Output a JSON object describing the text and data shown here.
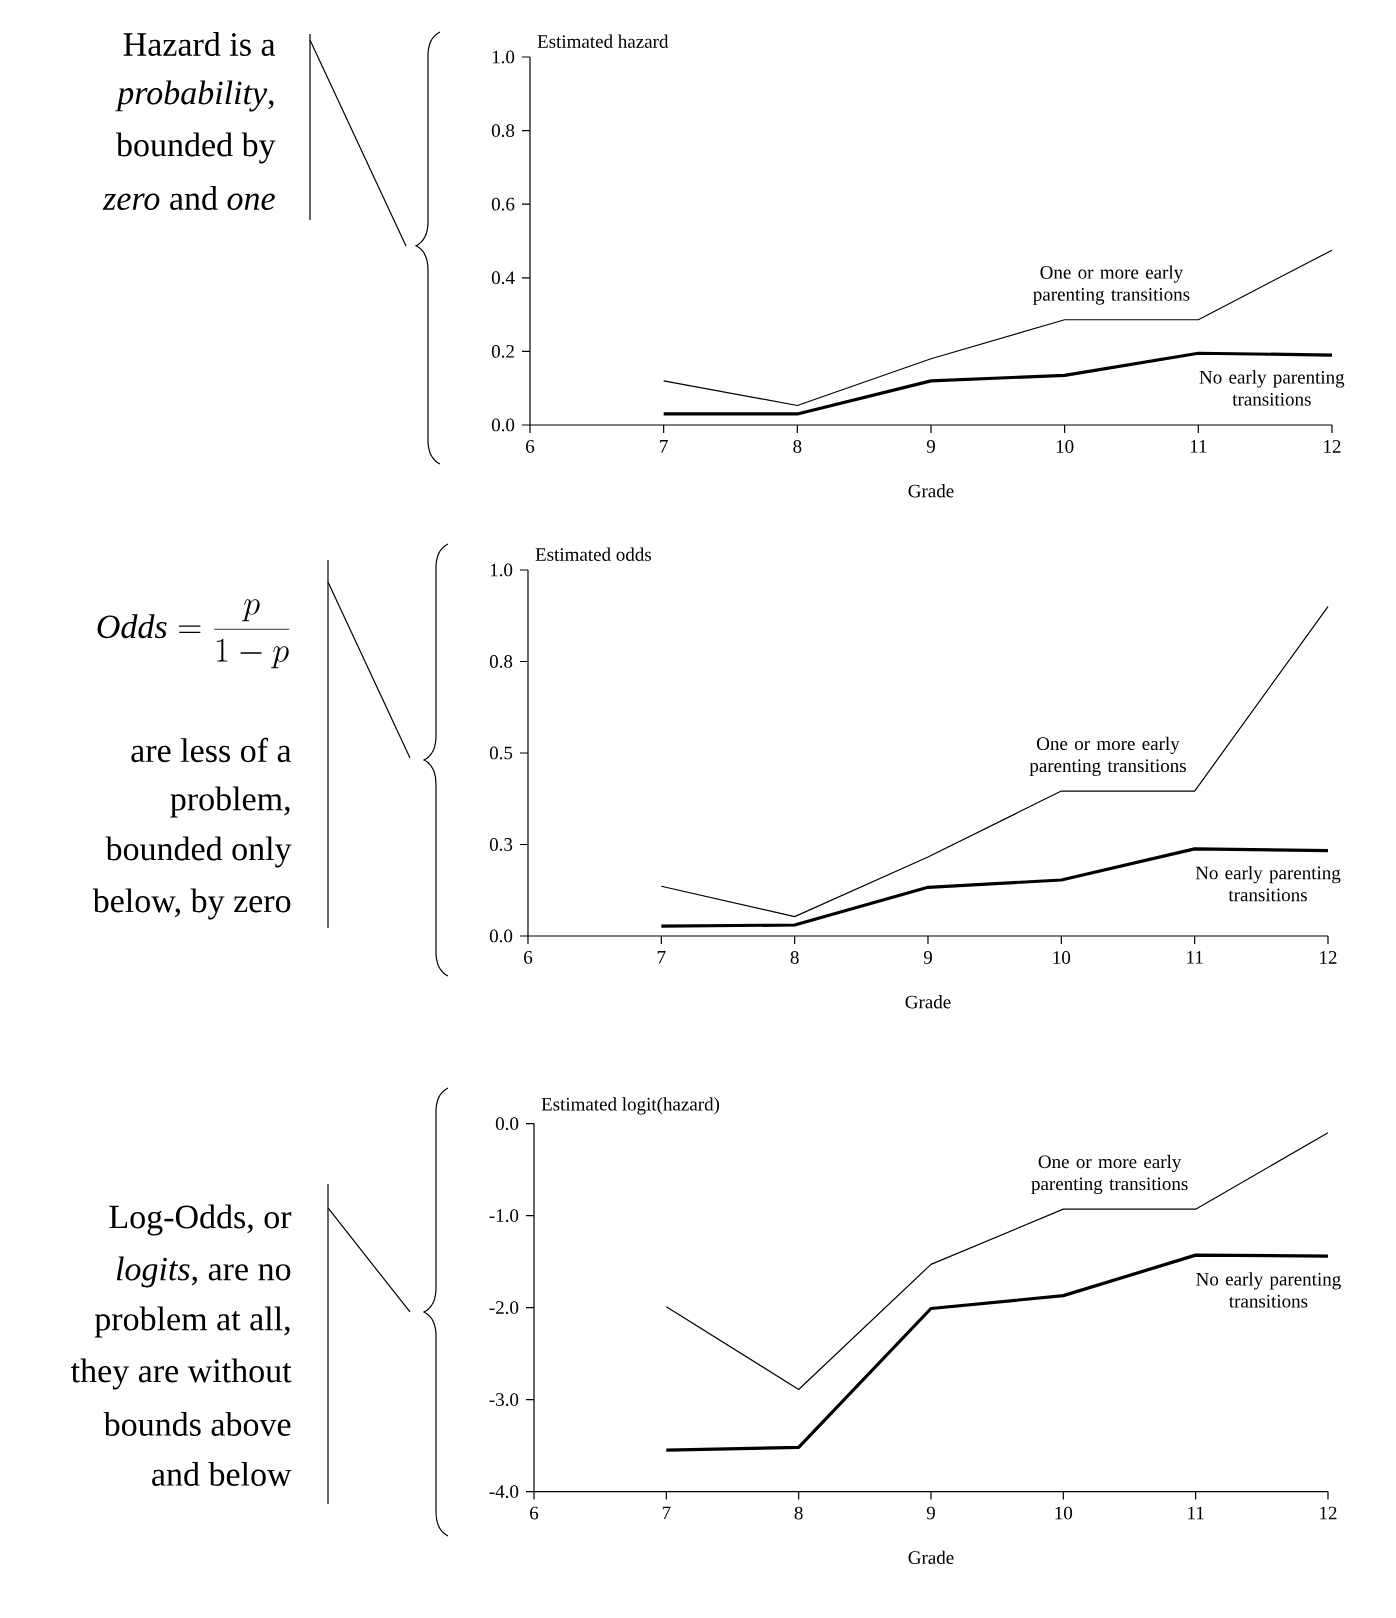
{
  "chart_data": [
    {
      "type": "line",
      "xlabel": "Grade",
      "ylabel": "Estimated hazard",
      "x": [
        7,
        8,
        9,
        10,
        11,
        12
      ],
      "xlim": [
        6,
        12
      ],
      "xticks": [
        6,
        7,
        8,
        9,
        10,
        11,
        12
      ],
      "ylim": [
        0,
        1
      ],
      "yticks": [
        {
          "value": 0,
          "label": "0.0"
        },
        {
          "value": 0.2,
          "label": "0.2"
        },
        {
          "value": 0.4,
          "label": "0.4"
        },
        {
          "value": 0.6,
          "label": "0.6"
        },
        {
          "value": 0.8,
          "label": "0.8"
        },
        {
          "value": 1,
          "label": "1.0"
        }
      ],
      "legend": false,
      "line_style": "solid",
      "marker": "none",
      "series": [
        {
          "name": "One or more early parenting transitions",
          "color": "#000000",
          "values": [
            0.12,
            0.053,
            0.18,
            0.286,
            0.286,
            0.475
          ]
        },
        {
          "name": "No early parenting transitions",
          "color": "#000000",
          "values": [
            0.03,
            0.03,
            0.12,
            0.135,
            0.195,
            0.19
          ]
        }
      ],
      "annotations": [
        "Hazard is a",
        "*probability*,",
        "bounded by",
        "*zero* and *one*"
      ]
    },
    {
      "type": "line",
      "xlabel": "Grade",
      "ylabel": "Estimated odds",
      "x": [
        7,
        8,
        9,
        10,
        11,
        12
      ],
      "xlim": [
        6,
        12
      ],
      "xticks": [
        6,
        7,
        8,
        9,
        10,
        11,
        12
      ],
      "ylim": [
        0,
        1
      ],
      "yticks": [
        {
          "value": 0,
          "label": "0.0"
        },
        {
          "value": 0.25,
          "label": "0.3"
        },
        {
          "value": 0.5,
          "label": "0.5"
        },
        {
          "value": 0.75,
          "label": "0.8"
        },
        {
          "value": 1,
          "label": "1.0"
        }
      ],
      "legend": false,
      "line_style": "solid",
      "marker": "none",
      "series": [
        {
          "name": "One or more early parenting transitions",
          "color": "#000000",
          "values": [
            0.136,
            0.053,
            0.216,
            0.396,
            0.396,
            0.9
          ]
        },
        {
          "name": "No early parenting transitions",
          "color": "#000000",
          "values": [
            0.027,
            0.03,
            0.133,
            0.153,
            0.238,
            0.233
          ]
        }
      ],
      "annotations": [
        "\\mathit{Odds} = \\frac{p}{1-p}",
        "are less of a",
        "problem,",
        "bounded only",
        "below, by zero"
      ]
    },
    {
      "type": "line",
      "xlabel": "Grade",
      "ylabel": "Estimated logit(hazard)",
      "x": [
        7,
        8,
        9,
        10,
        11,
        12
      ],
      "xlim": [
        6,
        12
      ],
      "xticks": [
        6,
        7,
        8,
        9,
        10,
        11,
        12
      ],
      "ylim": [
        -4,
        0
      ],
      "yticks": [
        {
          "value": -4,
          "label": "-4.0"
        },
        {
          "value": -3,
          "label": "-3.0"
        },
        {
          "value": -2,
          "label": "-2.0"
        },
        {
          "value": -1,
          "label": "-1.0"
        },
        {
          "value": 0,
          "label": "0.0"
        }
      ],
      "legend": false,
      "line_style": "solid",
      "marker": "none",
      "series": [
        {
          "name": "One or more early parenting transitions",
          "color": "#000000",
          "values": [
            -1.99,
            -2.89,
            -1.53,
            -0.93,
            -0.93,
            -0.1
          ]
        },
        {
          "name": "No early parenting transitions",
          "color": "#000000",
          "values": [
            -3.55,
            -3.52,
            -2.01,
            -1.87,
            -1.43,
            -1.44
          ]
        }
      ],
      "annotations": [
        "Log-Odds, or",
        "*logits*, are no",
        "problem at all,",
        "they are without",
        "bounds above",
        "and below"
      ]
    }
  ]
}
